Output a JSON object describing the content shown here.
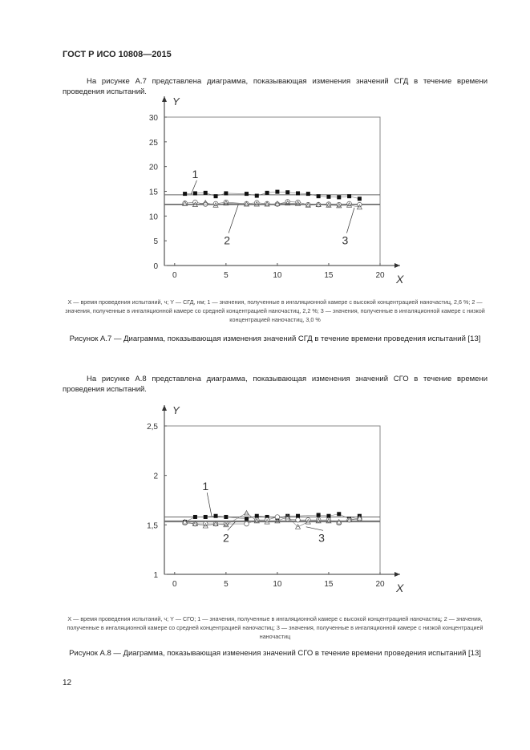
{
  "header": "ГОСТ Р ИСО 10808—2015",
  "para1": "На рисунке А.7 представлена диаграмма, показывающая изменения значений СГД в течение времени проведения испытаний.",
  "legend1": "X — время проведения испытаний, ч; Y — СГД, нм; 1 — значения, полученные в ингаляционной камере с высокой концентрацией наночастиц, 2,6 %; 2 — значения, полученные в ингаляционной камере со средней концентрацией наночастиц, 2,2 %; 3 — значения, полученные в ингаляционной камере с низкой концентрацией наночастиц, 3,0 %",
  "caption1": "Рисунок А.7 — Диаграмма, показывающая изменения значений СГД в течение времени проведения испытаний [13]",
  "para2": "На рисунке А.8 представлена диаграмма, показывающая изменения значений СГО в течение времени проведения испытаний.",
  "legend2": "X — время проведения испытаний, ч; Y — СГО; 1 — значения, полученные в ингаляционной камере с высокой концентрацией наночастиц; 2 — значения, полученные в ингаляционной камере со средней концентрацией наночастиц; 3 — значения, полученные в ингаляционной камере с низкой концентрацией наночастиц",
  "caption2": "Рисунок А.8 — Диаграмма, показывающая изменения значений СГО в течение времени проведения испытаний [13]",
  "page_number": "12",
  "chart_data": [
    {
      "type": "line",
      "xlabel": "X",
      "ylabel": "Y",
      "xlim": [
        -1,
        20
      ],
      "ylim": [
        0,
        30
      ],
      "xticks": [
        "0",
        "5",
        "10",
        "15",
        "20"
      ],
      "yticks": [
        "0",
        "5",
        "10",
        "15",
        "20",
        "25",
        "30"
      ],
      "x": [
        1,
        2,
        3,
        4,
        5,
        6,
        7,
        8,
        9,
        10,
        11,
        12,
        13,
        14,
        15,
        16,
        17,
        18
      ],
      "series": [
        {
          "name": "1",
          "marker": "filled-square",
          "values": [
            14.5,
            14.6,
            14.7,
            14.0,
            14.6,
            null,
            14.5,
            14.1,
            14.7,
            14.9,
            14.8,
            14.6,
            14.5,
            14.0,
            13.9,
            13.8,
            14.0,
            13.5
          ]
        },
        {
          "name": "2",
          "marker": "open-circle",
          "values": [
            12.6,
            12.8,
            12.4,
            12.5,
            12.8,
            null,
            12.5,
            12.7,
            12.5,
            12.4,
            12.9,
            12.8,
            12.3,
            12.3,
            12.4,
            12.3,
            12.5,
            12.3
          ]
        },
        {
          "name": "3",
          "marker": "open-triangle",
          "values": [
            12.5,
            12.3,
            12.7,
            12.2,
            12.6,
            null,
            12.4,
            12.4,
            12.4,
            12.5,
            12.6,
            12.5,
            12.2,
            12.3,
            12.2,
            12.1,
            12.2,
            11.8
          ]
        }
      ],
      "reference_lines": [
        14.3,
        12.4,
        12.3
      ]
    },
    {
      "type": "line",
      "xlabel": "X",
      "ylabel": "Y",
      "xlim": [
        -1,
        20
      ],
      "ylim": [
        1,
        2.5
      ],
      "xticks": [
        "0",
        "5",
        "10",
        "15",
        "20"
      ],
      "yticks": [
        "1",
        "1,5",
        "2",
        "2,5"
      ],
      "x": [
        1,
        2,
        3,
        4,
        5,
        6,
        7,
        8,
        9,
        10,
        11,
        12,
        13,
        14,
        15,
        16,
        17,
        18
      ],
      "series": [
        {
          "name": "1",
          "marker": "filled-square",
          "values": [
            1.53,
            1.58,
            1.58,
            1.59,
            1.58,
            null,
            1.56,
            1.59,
            1.58,
            1.57,
            1.59,
            1.59,
            null,
            1.6,
            1.59,
            1.61,
            1.56,
            1.59
          ]
        },
        {
          "name": "2",
          "marker": "open-circle",
          "values": [
            1.52,
            1.51,
            1.51,
            1.51,
            1.51,
            null,
            1.51,
            1.55,
            1.55,
            1.58,
            1.56,
            1.55,
            1.55,
            1.55,
            1.55,
            1.52,
            1.55,
            1.56
          ]
        },
        {
          "name": "3",
          "marker": "open-triangle",
          "values": [
            1.53,
            1.51,
            1.49,
            1.51,
            1.5,
            null,
            1.62,
            1.54,
            1.53,
            1.54,
            1.58,
            1.48,
            1.53,
            1.54,
            1.54,
            1.53,
            1.55,
            1.57
          ]
        }
      ],
      "reference_lines": [
        1.58,
        1.54,
        1.53
      ]
    }
  ]
}
